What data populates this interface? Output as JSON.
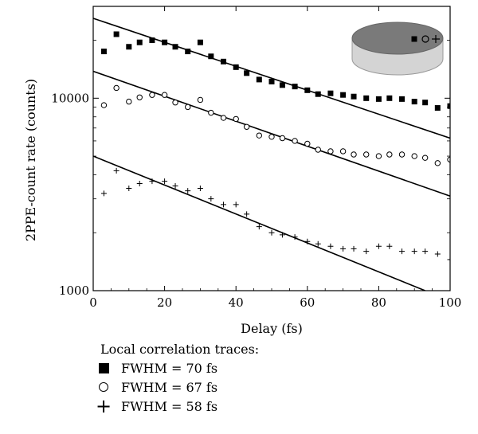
{
  "chart_data": {
    "type": "scatter",
    "xlabel": "Delay (fs)",
    "ylabel": "2PPE-count rate (counts)",
    "xlim": [
      0,
      100
    ],
    "ylim": [
      1000,
      30000
    ],
    "yscale": "log",
    "xticks": [
      0,
      20,
      40,
      60,
      80,
      100
    ],
    "yticks": [
      {
        "value": 1000,
        "label": "1000"
      },
      {
        "value": 10000,
        "label": "10000"
      }
    ],
    "legend_title": "Local correlation traces:",
    "legend_position": "below-left",
    "series": [
      {
        "name": "FWHM = 70 fs",
        "marker": "square",
        "points": [
          [
            3,
            17500
          ],
          [
            6.5,
            21500
          ],
          [
            10,
            18500
          ],
          [
            13,
            19500
          ],
          [
            16.5,
            20000
          ],
          [
            20,
            19500
          ],
          [
            23,
            18500
          ],
          [
            26.5,
            17500
          ],
          [
            30,
            19500
          ],
          [
            33,
            16500
          ],
          [
            36.5,
            15500
          ],
          [
            40,
            14500
          ],
          [
            43,
            13500
          ],
          [
            46.5,
            12500
          ],
          [
            50,
            12200
          ],
          [
            53,
            11700
          ],
          [
            56.5,
            11500
          ],
          [
            60,
            11000
          ],
          [
            63,
            10500
          ],
          [
            66.5,
            10600
          ],
          [
            70,
            10400
          ],
          [
            73,
            10200
          ],
          [
            76.5,
            10000
          ],
          [
            80,
            9900
          ],
          [
            83,
            10000
          ],
          [
            86.5,
            9900
          ],
          [
            90,
            9600
          ],
          [
            93,
            9500
          ],
          [
            96.5,
            8900
          ],
          [
            100,
            9100
          ]
        ],
        "fit": [
          [
            0,
            26000
          ],
          [
            100,
            6200
          ]
        ]
      },
      {
        "name": "FWHM = 67 fs",
        "marker": "circle",
        "points": [
          [
            3,
            9200
          ],
          [
            6.5,
            11300
          ],
          [
            10,
            9600
          ],
          [
            13,
            10100
          ],
          [
            16.5,
            10400
          ],
          [
            20,
            10400
          ],
          [
            23,
            9500
          ],
          [
            26.5,
            9000
          ],
          [
            30,
            9800
          ],
          [
            33,
            8400
          ],
          [
            36.5,
            7900
          ],
          [
            40,
            7800
          ],
          [
            43,
            7100
          ],
          [
            46.5,
            6400
          ],
          [
            50,
            6300
          ],
          [
            53,
            6200
          ],
          [
            56.5,
            6000
          ],
          [
            60,
            5800
          ],
          [
            63,
            5400
          ],
          [
            66.5,
            5300
          ],
          [
            70,
            5300
          ],
          [
            73,
            5100
          ],
          [
            76.5,
            5100
          ],
          [
            80,
            5000
          ],
          [
            83,
            5100
          ],
          [
            86.5,
            5100
          ],
          [
            90,
            5000
          ],
          [
            93,
            4900
          ],
          [
            96.5,
            4600
          ],
          [
            100,
            4800
          ]
        ],
        "fit": [
          [
            0,
            13800
          ],
          [
            100,
            3100
          ]
        ]
      },
      {
        "name": "FWHM = 58 fs",
        "marker": "plus",
        "points": [
          [
            3,
            3200
          ],
          [
            6.5,
            4200
          ],
          [
            10,
            3400
          ],
          [
            13,
            3600
          ],
          [
            16.5,
            3700
          ],
          [
            20,
            3700
          ],
          [
            23,
            3500
          ],
          [
            26.5,
            3300
          ],
          [
            30,
            3400
          ],
          [
            33,
            3000
          ],
          [
            36.5,
            2800
          ],
          [
            40,
            2800
          ],
          [
            43,
            2500
          ],
          [
            46.5,
            2150
          ],
          [
            50,
            2000
          ],
          [
            53,
            1950
          ],
          [
            56.5,
            1900
          ],
          [
            60,
            1800
          ],
          [
            63,
            1750
          ],
          [
            66.5,
            1700
          ],
          [
            70,
            1650
          ],
          [
            73,
            1650
          ],
          [
            76.5,
            1600
          ],
          [
            80,
            1700
          ],
          [
            83,
            1700
          ],
          [
            86.5,
            1600
          ],
          [
            90,
            1600
          ],
          [
            93,
            1600
          ],
          [
            96.5,
            1550
          ],
          [
            100,
            1450
          ]
        ],
        "fit": [
          [
            0,
            5000
          ],
          [
            93,
            1000
          ]
        ]
      }
    ],
    "inset": {
      "shape": "disk",
      "top_color": "#7a7a7a",
      "side_color": "#d4d4d4",
      "markers": [
        "square",
        "circle",
        "plus"
      ]
    }
  },
  "legend": {
    "title": "Local correlation traces:",
    "items": [
      {
        "marker": "square",
        "label": "FWHM = 70 fs"
      },
      {
        "marker": "circle",
        "label": "FWHM = 67 fs"
      },
      {
        "marker": "plus",
        "label": "FWHM = 58 fs"
      }
    ]
  }
}
